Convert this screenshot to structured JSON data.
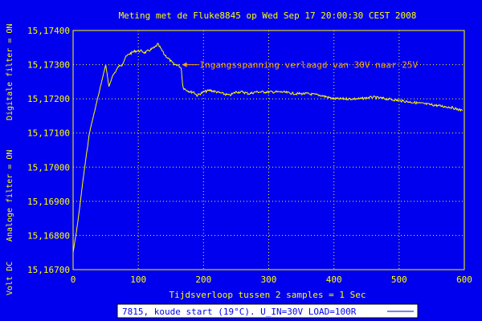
{
  "chart_data": {
    "type": "line",
    "title": "Meting met de Fluke8845 op Wed Sep 17 20:00:30 CEST 2008",
    "xlabel": "Tijdsverloop tussen 2 samples = 1 Sec",
    "ylabel_right_part": "Digitale filter = ON",
    "ylabel_middle_part": "Analoge filter = ON",
    "ylabel_left_part": "Volt DC",
    "xlim": [
      0,
      600
    ],
    "ylim": [
      15.167,
      15.174
    ],
    "x_ticks": [
      0,
      100,
      200,
      300,
      400,
      500,
      600
    ],
    "x_tick_labels": [
      "0",
      "100",
      "200",
      "300",
      "400",
      "500",
      "600"
    ],
    "y_ticks": [
      15.167,
      15.168,
      15.169,
      15.17,
      15.171,
      15.172,
      15.173,
      15.174
    ],
    "y_tick_labels": [
      "15,16700",
      "15,16800",
      "15,16900",
      "15,17000",
      "15,17100",
      "15,17200",
      "15,17300",
      "15,17400"
    ],
    "grid": true,
    "series": [
      {
        "name": "7815, koude start (19°C), U_IN=30V LOAD=100R",
        "color": "#ffff00",
        "x": [
          0,
          5,
          10,
          15,
          20,
          25,
          30,
          35,
          40,
          45,
          50,
          55,
          60,
          65,
          70,
          75,
          80,
          85,
          90,
          95,
          100,
          105,
          110,
          115,
          120,
          125,
          130,
          135,
          140,
          145,
          150,
          155,
          160,
          163,
          166,
          168,
          170,
          175,
          180,
          185,
          190,
          195,
          200,
          210,
          220,
          230,
          240,
          250,
          260,
          270,
          280,
          290,
          300,
          320,
          340,
          360,
          380,
          400,
          420,
          440,
          460,
          480,
          500,
          520,
          540,
          560,
          580,
          597
        ],
        "y": [
          15.1675,
          15.1681,
          15.1688,
          15.1696,
          15.1703,
          15.171,
          15.1714,
          15.1718,
          15.1722,
          15.1726,
          15.173,
          15.17235,
          15.17265,
          15.1728,
          15.17295,
          15.173,
          15.1732,
          15.1733,
          15.17335,
          15.1734,
          15.1734,
          15.1734,
          15.17335,
          15.1734,
          15.17345,
          15.1735,
          15.1736,
          15.17345,
          15.1733,
          15.1732,
          15.1731,
          15.173,
          15.173,
          15.17295,
          15.1729,
          15.1724,
          15.1723,
          15.17225,
          15.1722,
          15.1722,
          15.1721,
          15.17215,
          15.1722,
          15.17225,
          15.1722,
          15.17215,
          15.1721,
          15.1722,
          15.1722,
          15.17215,
          15.1722,
          15.1722,
          15.1722,
          15.1722,
          15.17215,
          15.17215,
          15.1721,
          15.172,
          15.172,
          15.172,
          15.17205,
          15.172,
          15.17195,
          15.1719,
          15.17185,
          15.1718,
          15.17175,
          15.17165
        ]
      }
    ],
    "annotation": {
      "text": "Ingangsspanning verlaagd van 30V naar 25V",
      "point_x": 167,
      "point_y": 15.173,
      "color": "#ffa500"
    },
    "legend": {
      "placement": "bottom-center",
      "text": "7815, koude start (19°C).  U_IN=30V  LOAD=100R"
    },
    "colors": {
      "background": "#0000ee",
      "grid": "#ffff00",
      "axis_text": "#ffff00",
      "line": "#ffff00",
      "annotation": "#ffa500",
      "legend_bg": "#ffffff",
      "legend_text": "#0000ee"
    }
  }
}
